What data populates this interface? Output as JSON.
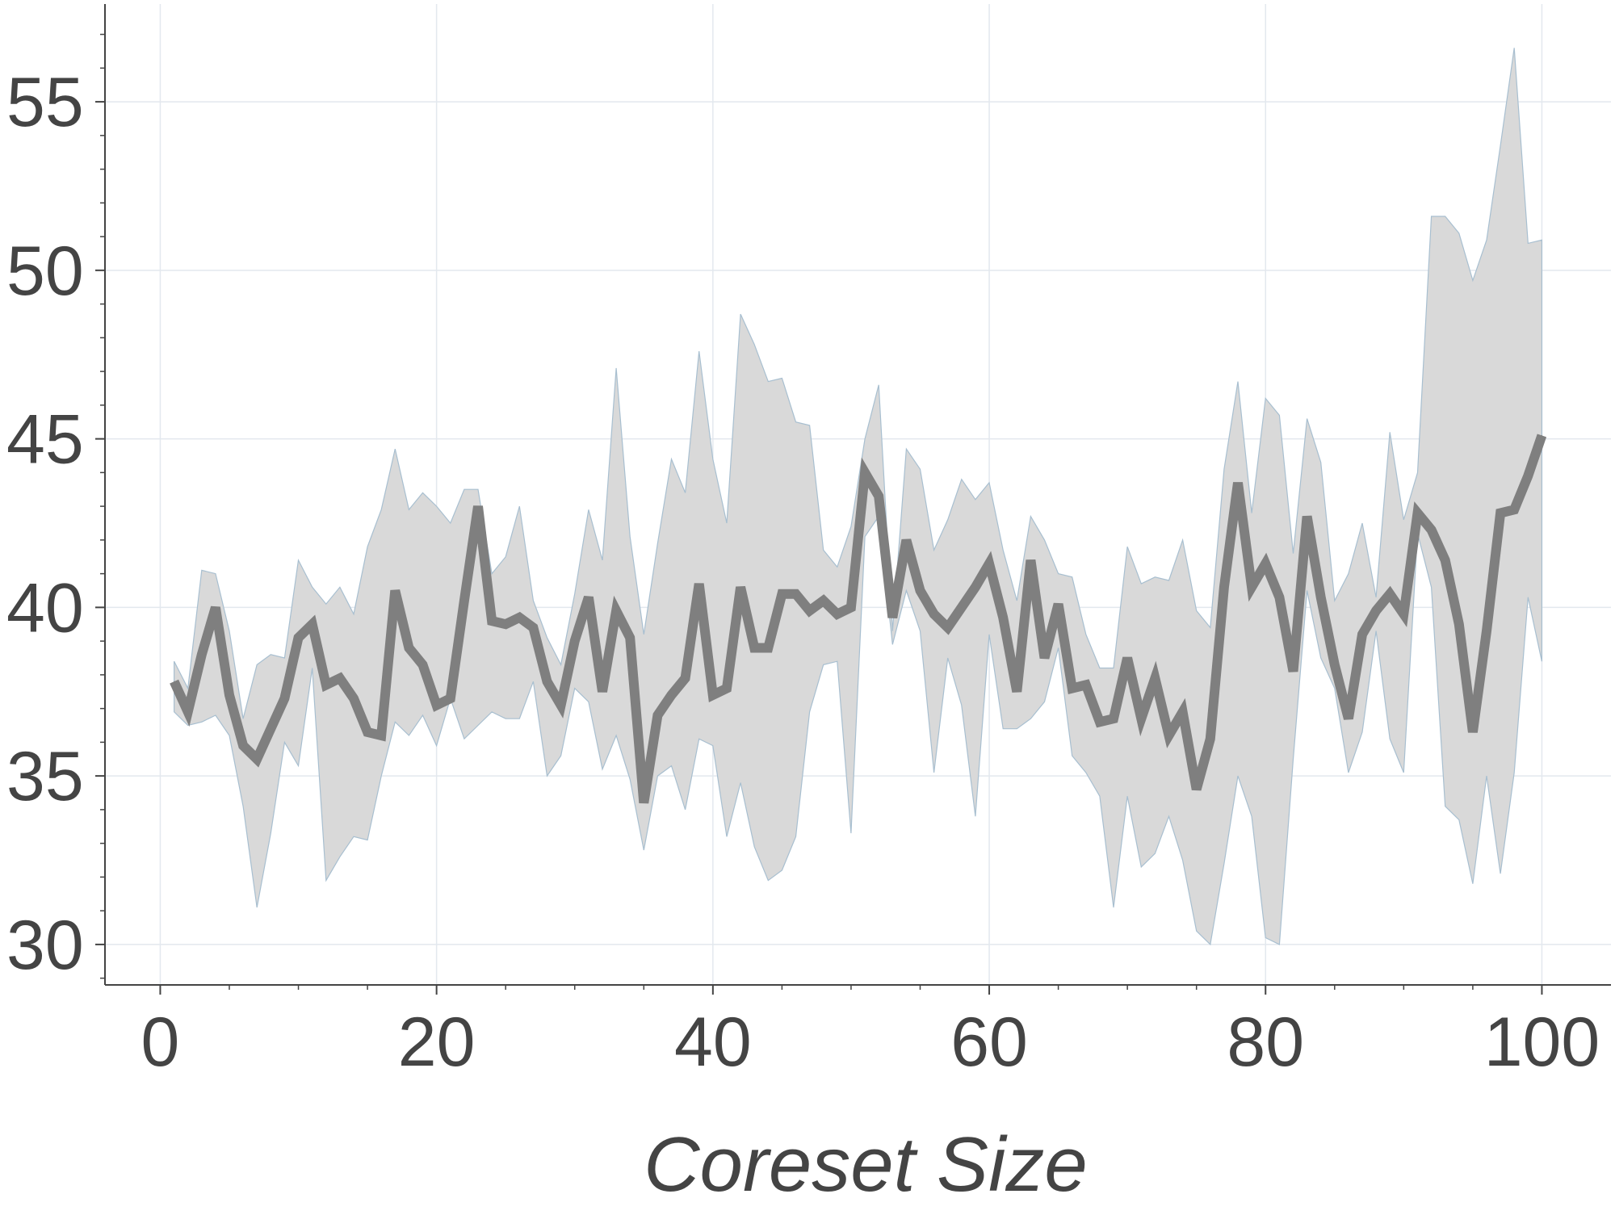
{
  "chart_data": {
    "type": "line",
    "title": "",
    "xlabel": "Coreset Size",
    "ylabel": "",
    "xlim": [
      -4,
      105
    ],
    "ylim": [
      28.8,
      57.9
    ],
    "x_ticks": [
      0,
      20,
      40,
      60,
      80,
      100
    ],
    "x_tick_labels": [
      "0",
      "20",
      "40",
      "60",
      "80",
      "100"
    ],
    "y_ticks": [
      30,
      35,
      40,
      45,
      50,
      55
    ],
    "y_tick_labels": [
      "30",
      "35",
      "40",
      "45",
      "50",
      "55"
    ],
    "grid": true,
    "legend": "none",
    "colors": {
      "line": "#7f7f7f",
      "band": "#d9d9d9",
      "band_edge": "#a8bfd0",
      "axis": "#444444",
      "grid": "#e3e8ee"
    },
    "series": [
      {
        "x": [
          1,
          2,
          3,
          4,
          5,
          6,
          7,
          8,
          9,
          10,
          11,
          12,
          13,
          14,
          15,
          16,
          17,
          18,
          19,
          20,
          21,
          22,
          23,
          24,
          25,
          26,
          27,
          28,
          29,
          30,
          31,
          32,
          33,
          34,
          35,
          36,
          37,
          38,
          39,
          40,
          41,
          42,
          43,
          44,
          45,
          46,
          47,
          48,
          49,
          50,
          51,
          52,
          53,
          54,
          55,
          56,
          57,
          58,
          59,
          60,
          61,
          62,
          63,
          64,
          65,
          66,
          67,
          68,
          69,
          70,
          71,
          72,
          73,
          74,
          75,
          76,
          77,
          78,
          79,
          80,
          81,
          82,
          83,
          84,
          85,
          86,
          87,
          88,
          89,
          90,
          91,
          92,
          93,
          94,
          95,
          96,
          97,
          98,
          99,
          100
        ],
        "mean": [
          37.8,
          36.9,
          38.6,
          40.0,
          37.4,
          35.9,
          35.5,
          36.4,
          37.3,
          39.1,
          39.5,
          37.7,
          37.9,
          37.3,
          36.3,
          36.2,
          40.5,
          38.8,
          38.3,
          37.1,
          37.3,
          40.2,
          43.0,
          39.6,
          39.5,
          39.7,
          39.4,
          37.8,
          37.1,
          39.0,
          40.3,
          37.5,
          39.9,
          39.1,
          34.2,
          36.8,
          37.4,
          37.9,
          40.7,
          37.4,
          37.6,
          40.6,
          38.8,
          38.8,
          40.4,
          40.4,
          39.9,
          40.2,
          39.8,
          40.0,
          44.0,
          43.3,
          39.7,
          42.0,
          40.5,
          39.8,
          39.4,
          40.0,
          40.6,
          41.3,
          39.7,
          37.5,
          41.4,
          38.5,
          40.1,
          37.6,
          37.7,
          36.6,
          36.7,
          38.5,
          36.7,
          37.9,
          36.2,
          36.9,
          34.6,
          36.1,
          40.6,
          43.7,
          40.6,
          41.3,
          40.3,
          38.1,
          42.7,
          40.3,
          38.3,
          36.7,
          39.2,
          39.9,
          40.4,
          39.8,
          42.8,
          42.3,
          41.4,
          39.5,
          36.3,
          39.3,
          42.8,
          42.9,
          43.9,
          45.1
        ],
        "lower": [
          36.9,
          36.5,
          36.6,
          36.8,
          36.2,
          34.1,
          31.1,
          33.3,
          36.0,
          35.3,
          38.2,
          31.9,
          32.6,
          33.2,
          33.1,
          35.0,
          36.6,
          36.2,
          36.8,
          35.9,
          37.3,
          36.1,
          36.5,
          36.9,
          36.7,
          36.7,
          37.8,
          35.0,
          35.6,
          37.6,
          37.2,
          35.2,
          36.2,
          34.9,
          32.8,
          35.0,
          35.3,
          34.0,
          36.1,
          35.9,
          33.2,
          34.8,
          32.9,
          31.9,
          32.2,
          33.2,
          36.9,
          38.3,
          38.4,
          33.3,
          42.1,
          42.7,
          38.9,
          40.5,
          39.3,
          35.1,
          38.5,
          37.1,
          33.8,
          39.2,
          36.4,
          36.4,
          36.7,
          37.2,
          38.8,
          35.6,
          35.1,
          34.4,
          31.1,
          34.4,
          32.3,
          32.7,
          33.8,
          32.5,
          30.4,
          30.0,
          32.4,
          35.0,
          33.8,
          30.2,
          30.0,
          35.5,
          40.5,
          38.5,
          37.6,
          35.1,
          36.3,
          39.3,
          36.1,
          35.1,
          42.2,
          40.6,
          34.1,
          33.7,
          31.8,
          35.0,
          32.1,
          35.1,
          40.3,
          38.4
        ],
        "upper": [
          38.4,
          37.6,
          41.1,
          41.0,
          39.3,
          36.7,
          38.3,
          38.6,
          38.5,
          41.4,
          40.6,
          40.1,
          40.6,
          39.8,
          41.8,
          42.9,
          44.7,
          42.9,
          43.4,
          43.0,
          42.5,
          43.5,
          43.5,
          41.0,
          41.5,
          43.0,
          40.2,
          39.1,
          38.3,
          40.4,
          42.9,
          41.4,
          47.1,
          42.1,
          39.2,
          41.9,
          44.4,
          43.4,
          47.6,
          44.4,
          42.5,
          48.7,
          47.8,
          46.7,
          46.8,
          45.5,
          45.4,
          41.7,
          41.2,
          42.4,
          45.0,
          46.6,
          39.3,
          44.7,
          44.1,
          41.7,
          42.6,
          43.8,
          43.2,
          43.7,
          41.7,
          40.2,
          42.7,
          42.0,
          41.0,
          40.9,
          39.2,
          38.2,
          38.2,
          41.8,
          40.7,
          40.9,
          40.8,
          42.0,
          39.9,
          39.4,
          44.1,
          46.7,
          42.8,
          46.2,
          45.7,
          41.6,
          45.6,
          44.3,
          40.2,
          41.0,
          42.5,
          40.3,
          45.2,
          42.6,
          44.0,
          51.6,
          51.6,
          51.1,
          49.7,
          50.9,
          53.7,
          56.6,
          50.8,
          50.9
        ]
      }
    ]
  }
}
